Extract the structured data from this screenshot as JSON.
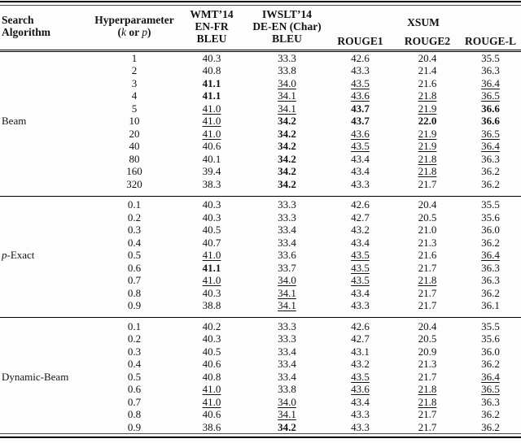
{
  "table": {
    "header": {
      "search_algorithm": [
        "Search",
        "Algorithm"
      ],
      "hyperparameter": "Hyperparameter",
      "hyperparameter_sub_segments": [
        {
          "text": "(",
          "italic": false
        },
        {
          "text": "k",
          "italic": true
        },
        {
          "text": " or ",
          "italic": false
        },
        {
          "text": "p",
          "italic": true
        },
        {
          "text": ")",
          "italic": false
        }
      ],
      "wmt": [
        "WMT’14",
        "EN-FR",
        "BLEU"
      ],
      "iwslt": [
        "IWSLT’14",
        "DE-EN (Char)",
        "BLEU"
      ],
      "xsum": "XSUM",
      "rouge": [
        "ROUGE1",
        "ROUGE2",
        "ROUGE-L"
      ]
    },
    "sections": [
      {
        "label_segments": [
          {
            "text": "Beam",
            "italic": false
          }
        ],
        "label_row": 5,
        "rows": [
          {
            "hp": "1",
            "cells": [
              [
                "40.3",
                ""
              ],
              [
                "33.3",
                ""
              ],
              [
                "42.6",
                ""
              ],
              [
                "20.4",
                ""
              ],
              [
                "35.5",
                ""
              ]
            ]
          },
          {
            "hp": "2",
            "cells": [
              [
                "40.8",
                ""
              ],
              [
                "33.8",
                ""
              ],
              [
                "43.3",
                ""
              ],
              [
                "21.4",
                ""
              ],
              [
                "36.3",
                ""
              ]
            ]
          },
          {
            "hp": "3",
            "cells": [
              [
                "41.1",
                "b"
              ],
              [
                "34.0",
                "u"
              ],
              [
                "43.5",
                "u"
              ],
              [
                "21.6",
                ""
              ],
              [
                "36.4",
                "u"
              ]
            ]
          },
          {
            "hp": "4",
            "cells": [
              [
                "41.1",
                "b"
              ],
              [
                "34.1",
                "u"
              ],
              [
                "43.6",
                "u"
              ],
              [
                "21.8",
                "u"
              ],
              [
                "36.5",
                "u"
              ]
            ]
          },
          {
            "hp": "5",
            "cells": [
              [
                "41.0",
                "u"
              ],
              [
                "34.1",
                "u"
              ],
              [
                "43.7",
                "b"
              ],
              [
                "21.9",
                "u"
              ],
              [
                "36.6",
                "b"
              ]
            ]
          },
          {
            "hp": "10",
            "cells": [
              [
                "41.0",
                "u"
              ],
              [
                "34.2",
                "b"
              ],
              [
                "43.7",
                "b"
              ],
              [
                "22.0",
                "b"
              ],
              [
                "36.6",
                "b"
              ]
            ]
          },
          {
            "hp": "20",
            "cells": [
              [
                "41.0",
                "u"
              ],
              [
                "34.2",
                "b"
              ],
              [
                "43.6",
                "u"
              ],
              [
                "21.9",
                "u"
              ],
              [
                "36.5",
                "u"
              ]
            ]
          },
          {
            "hp": "40",
            "cells": [
              [
                "40.6",
                ""
              ],
              [
                "34.2",
                "b"
              ],
              [
                "43.5",
                "u"
              ],
              [
                "21.9",
                "u"
              ],
              [
                "36.4",
                "u"
              ]
            ]
          },
          {
            "hp": "80",
            "cells": [
              [
                "40.1",
                ""
              ],
              [
                "34.2",
                "b"
              ],
              [
                "43.4",
                ""
              ],
              [
                "21.8",
                "u"
              ],
              [
                "36.3",
                ""
              ]
            ]
          },
          {
            "hp": "160",
            "cells": [
              [
                "39.4",
                ""
              ],
              [
                "34.2",
                "b"
              ],
              [
                "43.4",
                ""
              ],
              [
                "21.8",
                "u"
              ],
              [
                "36.2",
                ""
              ]
            ]
          },
          {
            "hp": "320",
            "cells": [
              [
                "38.3",
                ""
              ],
              [
                "34.2",
                "b"
              ],
              [
                "43.3",
                ""
              ],
              [
                "21.7",
                ""
              ],
              [
                "36.2",
                ""
              ]
            ]
          }
        ]
      },
      {
        "label_segments": [
          {
            "text": "p",
            "italic": true
          },
          {
            "text": "-Exact",
            "italic": false
          }
        ],
        "label_row": 4,
        "rows": [
          {
            "hp": "0.1",
            "cells": [
              [
                "40.3",
                ""
              ],
              [
                "33.3",
                ""
              ],
              [
                "42.6",
                ""
              ],
              [
                "20.4",
                ""
              ],
              [
                "35.5",
                ""
              ]
            ]
          },
          {
            "hp": "0.2",
            "cells": [
              [
                "40.3",
                ""
              ],
              [
                "33.3",
                ""
              ],
              [
                "42.7",
                ""
              ],
              [
                "20.5",
                ""
              ],
              [
                "35.6",
                ""
              ]
            ]
          },
          {
            "hp": "0.3",
            "cells": [
              [
                "40.5",
                ""
              ],
              [
                "33.4",
                ""
              ],
              [
                "43.2",
                ""
              ],
              [
                "21.0",
                ""
              ],
              [
                "36.0",
                ""
              ]
            ]
          },
          {
            "hp": "0.4",
            "cells": [
              [
                "40.7",
                ""
              ],
              [
                "33.4",
                ""
              ],
              [
                "43.4",
                ""
              ],
              [
                "21.3",
                ""
              ],
              [
                "36.2",
                ""
              ]
            ]
          },
          {
            "hp": "0.5",
            "cells": [
              [
                "41.0",
                "u"
              ],
              [
                "33.6",
                ""
              ],
              [
                "43.5",
                "u"
              ],
              [
                "21.6",
                ""
              ],
              [
                "36.4",
                "u"
              ]
            ]
          },
          {
            "hp": "0.6",
            "cells": [
              [
                "41.1",
                "b"
              ],
              [
                "33.7",
                ""
              ],
              [
                "43.5",
                "u"
              ],
              [
                "21.7",
                ""
              ],
              [
                "36.3",
                ""
              ]
            ]
          },
          {
            "hp": "0.7",
            "cells": [
              [
                "41.0",
                "u"
              ],
              [
                "34.0",
                "u"
              ],
              [
                "43.5",
                "u"
              ],
              [
                "21.8",
                "u"
              ],
              [
                "36.3",
                ""
              ]
            ]
          },
          {
            "hp": "0.8",
            "cells": [
              [
                "40.3",
                ""
              ],
              [
                "34.1",
                "u"
              ],
              [
                "43.4",
                ""
              ],
              [
                "21.7",
                ""
              ],
              [
                "36.2",
                ""
              ]
            ]
          },
          {
            "hp": "0.9",
            "cells": [
              [
                "38.8",
                ""
              ],
              [
                "34.1",
                "u"
              ],
              [
                "43.3",
                ""
              ],
              [
                "21.7",
                ""
              ],
              [
                "36.1",
                ""
              ]
            ]
          }
        ]
      },
      {
        "label_segments": [
          {
            "text": "Dynamic-Beam",
            "italic": false
          }
        ],
        "label_row": 4,
        "rows": [
          {
            "hp": "0.1",
            "cells": [
              [
                "40.2",
                ""
              ],
              [
                "33.3",
                ""
              ],
              [
                "42.6",
                ""
              ],
              [
                "20.4",
                ""
              ],
              [
                "35.5",
                ""
              ]
            ]
          },
          {
            "hp": "0.2",
            "cells": [
              [
                "40.3",
                ""
              ],
              [
                "33.3",
                ""
              ],
              [
                "42.7",
                ""
              ],
              [
                "20.5",
                ""
              ],
              [
                "35.6",
                ""
              ]
            ]
          },
          {
            "hp": "0.3",
            "cells": [
              [
                "40.5",
                ""
              ],
              [
                "33.4",
                ""
              ],
              [
                "43.1",
                ""
              ],
              [
                "20.9",
                ""
              ],
              [
                "36.0",
                ""
              ]
            ]
          },
          {
            "hp": "0.4",
            "cells": [
              [
                "40.6",
                ""
              ],
              [
                "33.4",
                ""
              ],
              [
                "43.2",
                ""
              ],
              [
                "21.3",
                ""
              ],
              [
                "36.2",
                ""
              ]
            ]
          },
          {
            "hp": "0.5",
            "cells": [
              [
                "40.8",
                ""
              ],
              [
                "33.4",
                ""
              ],
              [
                "43.5",
                "u"
              ],
              [
                "21.7",
                ""
              ],
              [
                "36.4",
                "u"
              ]
            ]
          },
          {
            "hp": "0.6",
            "cells": [
              [
                "41.0",
                "u"
              ],
              [
                "33.8",
                ""
              ],
              [
                "43.6",
                "u"
              ],
              [
                "21.8",
                "u"
              ],
              [
                "36.5",
                "u"
              ]
            ]
          },
          {
            "hp": "0.7",
            "cells": [
              [
                "41.0",
                "u"
              ],
              [
                "34.0",
                "u"
              ],
              [
                "43.4",
                ""
              ],
              [
                "21.8",
                "u"
              ],
              [
                "36.3",
                ""
              ]
            ]
          },
          {
            "hp": "0.8",
            "cells": [
              [
                "40.6",
                ""
              ],
              [
                "34.1",
                "u"
              ],
              [
                "43.3",
                ""
              ],
              [
                "21.7",
                ""
              ],
              [
                "36.2",
                ""
              ]
            ]
          },
          {
            "hp": "0.9",
            "cells": [
              [
                "38.6",
                ""
              ],
              [
                "34.2",
                "b"
              ],
              [
                "43.3",
                ""
              ],
              [
                "21.7",
                ""
              ],
              [
                "36.2",
                ""
              ]
            ]
          }
        ]
      }
    ]
  }
}
